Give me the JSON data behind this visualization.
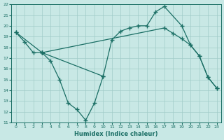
{
  "xlabel": "Humidex (Indice chaleur)",
  "xlim": [
    -0.5,
    23.5
  ],
  "ylim": [
    11,
    22
  ],
  "xticks": [
    0,
    1,
    2,
    3,
    4,
    5,
    6,
    7,
    8,
    9,
    10,
    11,
    12,
    13,
    14,
    15,
    16,
    17,
    18,
    19,
    20,
    21,
    22,
    23
  ],
  "yticks": [
    11,
    12,
    13,
    14,
    15,
    16,
    17,
    18,
    19,
    20,
    21,
    22
  ],
  "bg_color": "#c8e8e5",
  "grid_color": "#a0ccc8",
  "line_color": "#1a6e64",
  "lines": [
    {
      "x": [
        0,
        1,
        2,
        3
      ],
      "y": [
        19.4,
        18.5,
        17.5,
        17.5
      ]
    },
    {
      "x": [
        3,
        4,
        5,
        6,
        7,
        8,
        9,
        10
      ],
      "y": [
        17.5,
        16.7,
        15.0,
        12.8,
        12.2,
        11.2,
        12.8,
        15.3
      ]
    },
    {
      "x": [
        3,
        10,
        11,
        12,
        13,
        14,
        15,
        16,
        17,
        19,
        20,
        21,
        22,
        23
      ],
      "y": [
        17.5,
        15.3,
        18.7,
        19.5,
        19.8,
        20.0,
        20.0,
        21.3,
        21.8,
        20.0,
        18.2,
        17.2,
        15.2,
        14.2
      ]
    },
    {
      "x": [
        0,
        3,
        17,
        18,
        19,
        20,
        21,
        22,
        23
      ],
      "y": [
        19.4,
        17.5,
        19.8,
        19.3,
        18.8,
        18.2,
        17.2,
        15.2,
        14.2
      ]
    }
  ]
}
